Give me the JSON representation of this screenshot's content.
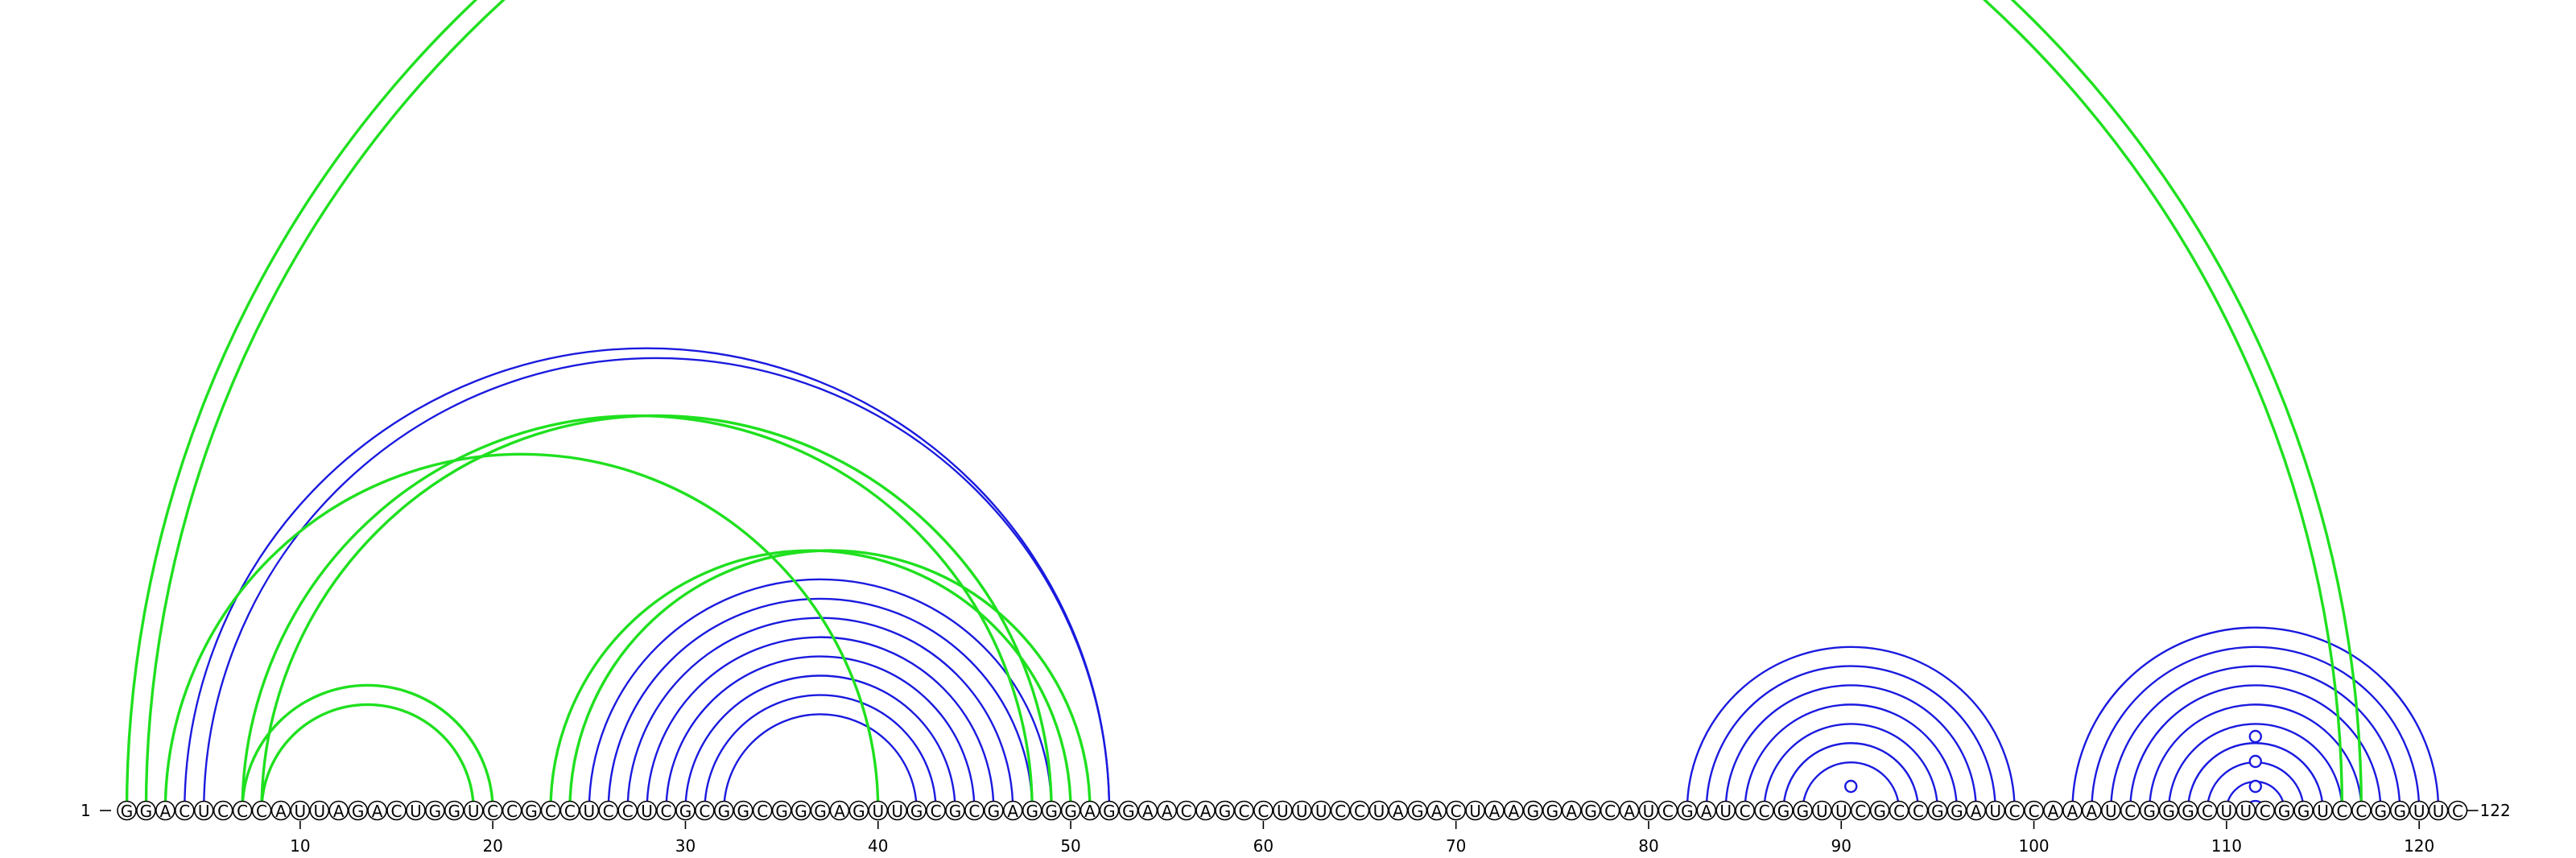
{
  "sequence": "GGACUCCCAUUAGACUGGUCCGCCUCCUCGCGGCGGGAGUUGCGCGAGGGAGGAACAGCCUUUCCUAGACUAAGGAGCAUCGAUCCGGUUCGCCGGAUCCAAAUCGGGCUUCGGUCCGGUUC",
  "start_label": "1",
  "end_label": "122",
  "tick_labels": [
    "10",
    "20",
    "30",
    "40",
    "50",
    "60",
    "70",
    "80",
    "90",
    "100",
    "110",
    "120"
  ],
  "colors": {
    "blue": "#1a1adf",
    "green": "#1fe01f"
  },
  "chart_data": {
    "type": "arc-diagram",
    "length": 122,
    "ticks": [
      10,
      20,
      30,
      40,
      50,
      60,
      70,
      80,
      90,
      100,
      110,
      120
    ],
    "pairs_blue": [
      [
        4,
        52
      ],
      [
        5,
        52
      ],
      [
        25,
        49
      ],
      [
        26,
        48
      ],
      [
        27,
        47
      ],
      [
        28,
        46
      ],
      [
        29,
        45
      ],
      [
        30,
        44
      ],
      [
        31,
        43
      ],
      [
        32,
        42
      ],
      [
        82,
        99
      ],
      [
        83,
        98
      ],
      [
        84,
        97
      ],
      [
        85,
        96
      ],
      [
        86,
        95
      ],
      [
        87,
        94
      ],
      [
        88,
        93
      ],
      [
        102,
        121
      ],
      [
        103,
        120
      ],
      [
        104,
        119
      ],
      [
        105,
        118
      ],
      [
        106,
        117
      ],
      [
        107,
        116
      ],
      [
        108,
        115
      ],
      [
        109,
        114
      ],
      [
        110,
        113
      ],
      [
        111,
        112
      ]
    ],
    "pairs_green": [
      [
        1,
        117
      ],
      [
        2,
        116
      ],
      [
        7,
        48
      ],
      [
        8,
        49
      ],
      [
        7,
        20
      ],
      [
        8,
        19
      ],
      [
        3,
        40
      ],
      [
        23,
        50
      ],
      [
        24,
        51
      ]
    ],
    "loop_markers": [
      {
        "position": 90.5
      },
      {
        "position": 111.5,
        "level": 1
      },
      {
        "position": 111.5,
        "level": 2
      },
      {
        "position": 111.5,
        "level": 3
      }
    ]
  }
}
